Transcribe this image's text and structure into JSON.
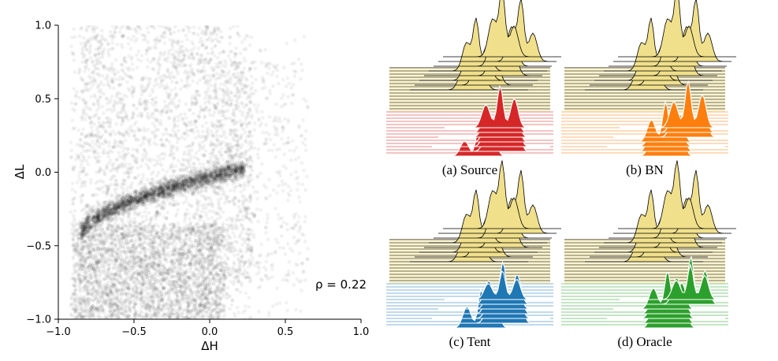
{
  "chart_data": [
    {
      "type": "scatter",
      "title": "",
      "xlabel": "ΔH",
      "ylabel": "ΔL",
      "xlim": [
        -1.0,
        1.0
      ],
      "ylim": [
        -1.0,
        1.0
      ],
      "xticks": [
        "−1.0",
        "−0.5",
        "0.0",
        "0.5",
        "1.0"
      ],
      "yticks": [
        "−1.0",
        "−0.5",
        "0.0",
        "0.5",
        "1.0"
      ],
      "annotation": "ρ = 0.22",
      "point_color": "#000000",
      "point_opacity": 0.05,
      "grid": false,
      "description_values": {
        "dense_band": [
          [
            -0.9,
            -0.4
          ],
          [
            -0.6,
            -0.18
          ],
          [
            -0.3,
            -0.1
          ],
          [
            0.0,
            -0.02
          ],
          [
            0.18,
            0.02
          ],
          [
            0.25,
            0.03
          ]
        ],
        "cloud_x_range": [
          -0.95,
          0.75
        ],
        "cloud_y_range": [
          -1.0,
          1.0
        ]
      }
    },
    {
      "type": "area",
      "subtype": "ridgeline",
      "panels": [
        {
          "caption": "(a) Source",
          "color": "#d62728",
          "reference_color": "#f0e08c"
        },
        {
          "caption": "(b) BN",
          "color": "#ff7f0e",
          "reference_color": "#f0e08c"
        },
        {
          "caption": "(c) Tent",
          "color": "#1f77b4",
          "reference_color": "#f0e08c"
        },
        {
          "caption": "(d) Oracle",
          "color": "#2ca02c",
          "reference_color": "#f0e08c"
        }
      ]
    }
  ]
}
